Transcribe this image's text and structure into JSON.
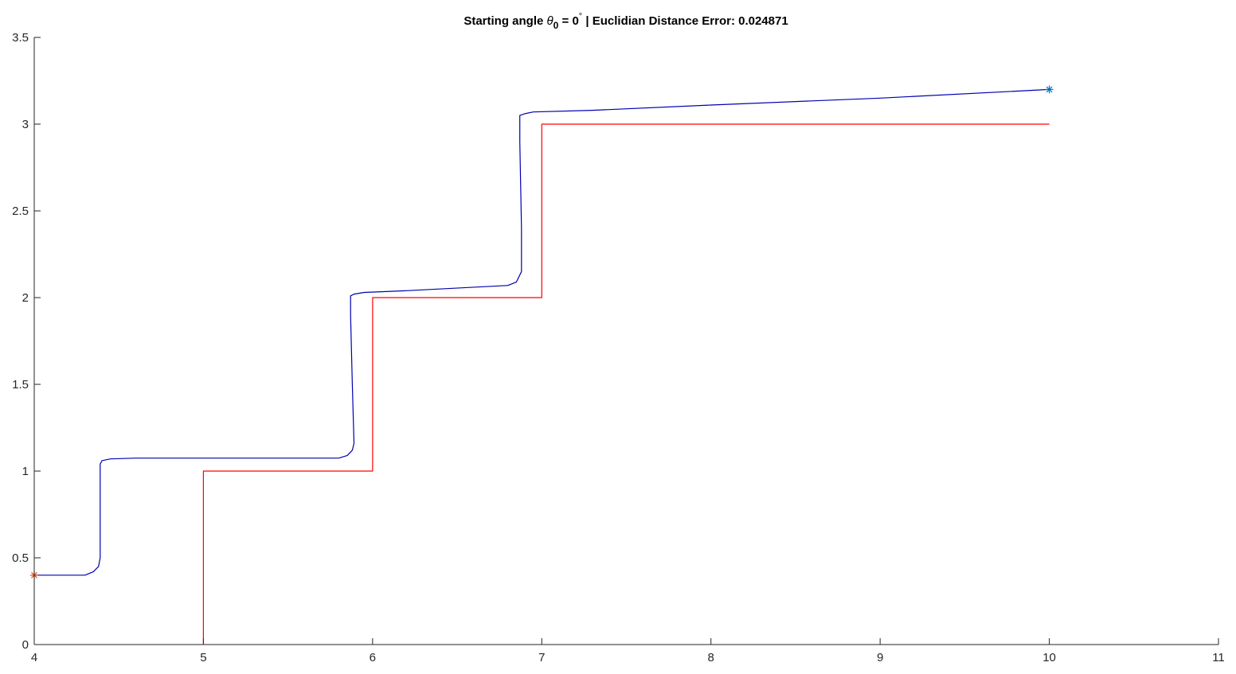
{
  "figure": {
    "title": {
      "prefix": "Starting angle ",
      "theta": "θ",
      "sub": "0",
      "mid": " = 0",
      "degree": "°",
      "suffix": "  |  Euclidian Distance Error: 0.024871"
    }
  },
  "chart_data": {
    "type": "line",
    "title": "Starting angle θ0 = 0°  |  Euclidian Distance Error: 0.024871",
    "xlabel": "",
    "ylabel": "",
    "xlim": [
      4,
      11
    ],
    "ylim": [
      0,
      3.5
    ],
    "xticks": [
      4,
      5,
      6,
      7,
      8,
      9,
      10,
      11
    ],
    "yticks": [
      0,
      0.5,
      1,
      1.5,
      2,
      2.5,
      3,
      3.5
    ],
    "xtick_labels": [
      "4",
      "5",
      "6",
      "7",
      "8",
      "9",
      "10",
      "11"
    ],
    "ytick_labels": [
      "0",
      "0.5",
      "1",
      "1.5",
      "2",
      "2.5",
      "3",
      "3.5"
    ],
    "grid": false,
    "legend": "none",
    "series": [
      {
        "color": "#ff0000",
        "x": [
          5,
          5,
          6,
          6,
          7,
          7,
          10
        ],
        "y": [
          0,
          1,
          1,
          2,
          2,
          3,
          3
        ]
      },
      {
        "color": "#0000b0",
        "x": [
          4,
          4.3,
          4.35,
          4.38,
          4.39,
          4.39,
          4.4,
          4.45,
          4.6,
          5.0,
          5.5,
          5.8,
          5.85,
          5.88,
          5.89,
          5.88,
          5.87,
          5.87,
          5.89,
          5.95,
          6.2,
          6.8,
          6.85,
          6.88,
          6.88,
          6.87,
          6.87,
          6.9,
          6.95,
          7.3,
          8.0,
          9.0,
          10
        ],
        "y": [
          0.4,
          0.4,
          0.42,
          0.45,
          0.5,
          1.04,
          1.06,
          1.07,
          1.075,
          1.075,
          1.075,
          1.075,
          1.09,
          1.12,
          1.16,
          1.5,
          1.9,
          2.01,
          2.02,
          2.03,
          2.04,
          2.07,
          2.09,
          2.15,
          2.4,
          2.9,
          3.05,
          3.06,
          3.07,
          3.08,
          3.11,
          3.15,
          3.2
        ]
      }
    ],
    "markers": [
      {
        "x": 4,
        "y": 0.4,
        "symbol": "*",
        "color": "#d95319"
      },
      {
        "x": 10,
        "y": 3.2,
        "symbol": "*",
        "color": "#0072bd"
      }
    ]
  }
}
